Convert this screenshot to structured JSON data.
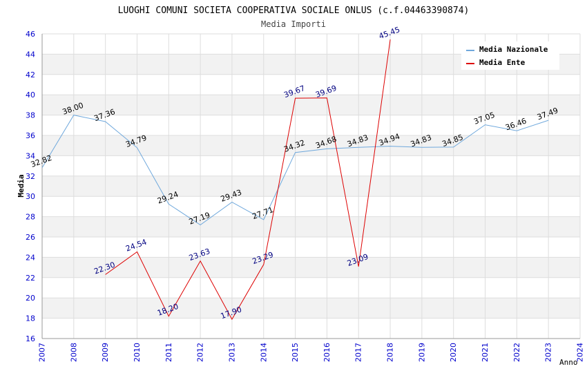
{
  "chart_data": {
    "type": "line",
    "title": "LUOGHI COMUNI SOCIETA COOPERATIVA SOCIALE ONLUS (c.f.04463390874)",
    "subtitle": "Media Importi",
    "xlabel": "Anno",
    "ylabel": "Media",
    "xlim": [
      2007,
      2024
    ],
    "ylim": [
      16,
      46
    ],
    "x_ticks": [
      2007,
      2008,
      2009,
      2010,
      2011,
      2012,
      2013,
      2014,
      2015,
      2016,
      2017,
      2018,
      2019,
      2020,
      2021,
      2022,
      2023,
      2024
    ],
    "y_ticks": [
      16,
      18,
      20,
      22,
      24,
      26,
      28,
      30,
      32,
      34,
      36,
      38,
      40,
      42,
      44,
      46
    ],
    "grid": true,
    "legend_position": "top-right",
    "series": [
      {
        "name": "Media Nazionale",
        "color": "#6fa8dc",
        "label_color": "#000000",
        "x": [
          2007,
          2008,
          2009,
          2010,
          2011,
          2012,
          2013,
          2014,
          2015,
          2016,
          2017,
          2018,
          2019,
          2020,
          2021,
          2022,
          2023
        ],
        "values": [
          32.82,
          38.0,
          37.36,
          34.79,
          29.24,
          27.19,
          29.43,
          27.71,
          34.32,
          34.68,
          34.83,
          34.94,
          34.83,
          34.85,
          37.05,
          36.46,
          37.49
        ],
        "labels": [
          "32.82",
          "38.00",
          "37.36",
          "34.79",
          "29.24",
          "27.19",
          "29.43",
          "27.71",
          "34.32",
          "34.68",
          "34.83",
          "34.94",
          "34.83",
          "34.85",
          "37.05",
          "36.46",
          "37.49"
        ]
      },
      {
        "name": "Media Ente",
        "color": "#dd0000",
        "label_color": "#000080",
        "x": [
          2009,
          2010,
          2011,
          2012,
          2013,
          2014,
          2015,
          2016,
          2017,
          2018
        ],
        "values": [
          22.3,
          24.54,
          18.2,
          23.63,
          17.9,
          23.29,
          39.67,
          39.69,
          23.09,
          45.45
        ],
        "labels": [
          "22.30",
          "24.54",
          "18.20",
          "23.63",
          "17.90",
          "23.29",
          "39.67",
          "39.69",
          "23.09",
          "45.45"
        ]
      }
    ]
  }
}
